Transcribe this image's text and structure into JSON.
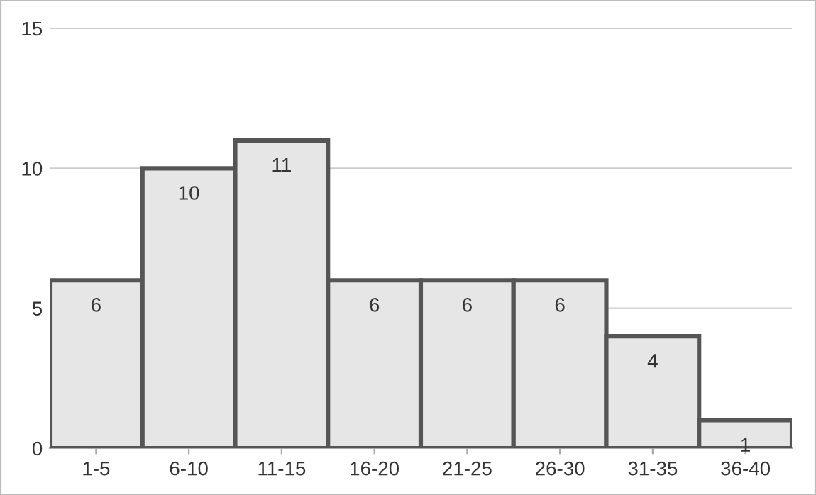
{
  "chart_data": {
    "type": "bar",
    "categories": [
      "1-5",
      "6-10",
      "11-15",
      "16-20",
      "21-25",
      "26-30",
      "31-35",
      "36-40"
    ],
    "values": [
      6,
      10,
      11,
      6,
      6,
      6,
      4,
      1
    ],
    "color": "#e6e6e6",
    "ylim": [
      0,
      15
    ],
    "yticks": [
      0,
      5,
      10,
      15
    ],
    "grid": "y",
    "data_labels": true
  }
}
